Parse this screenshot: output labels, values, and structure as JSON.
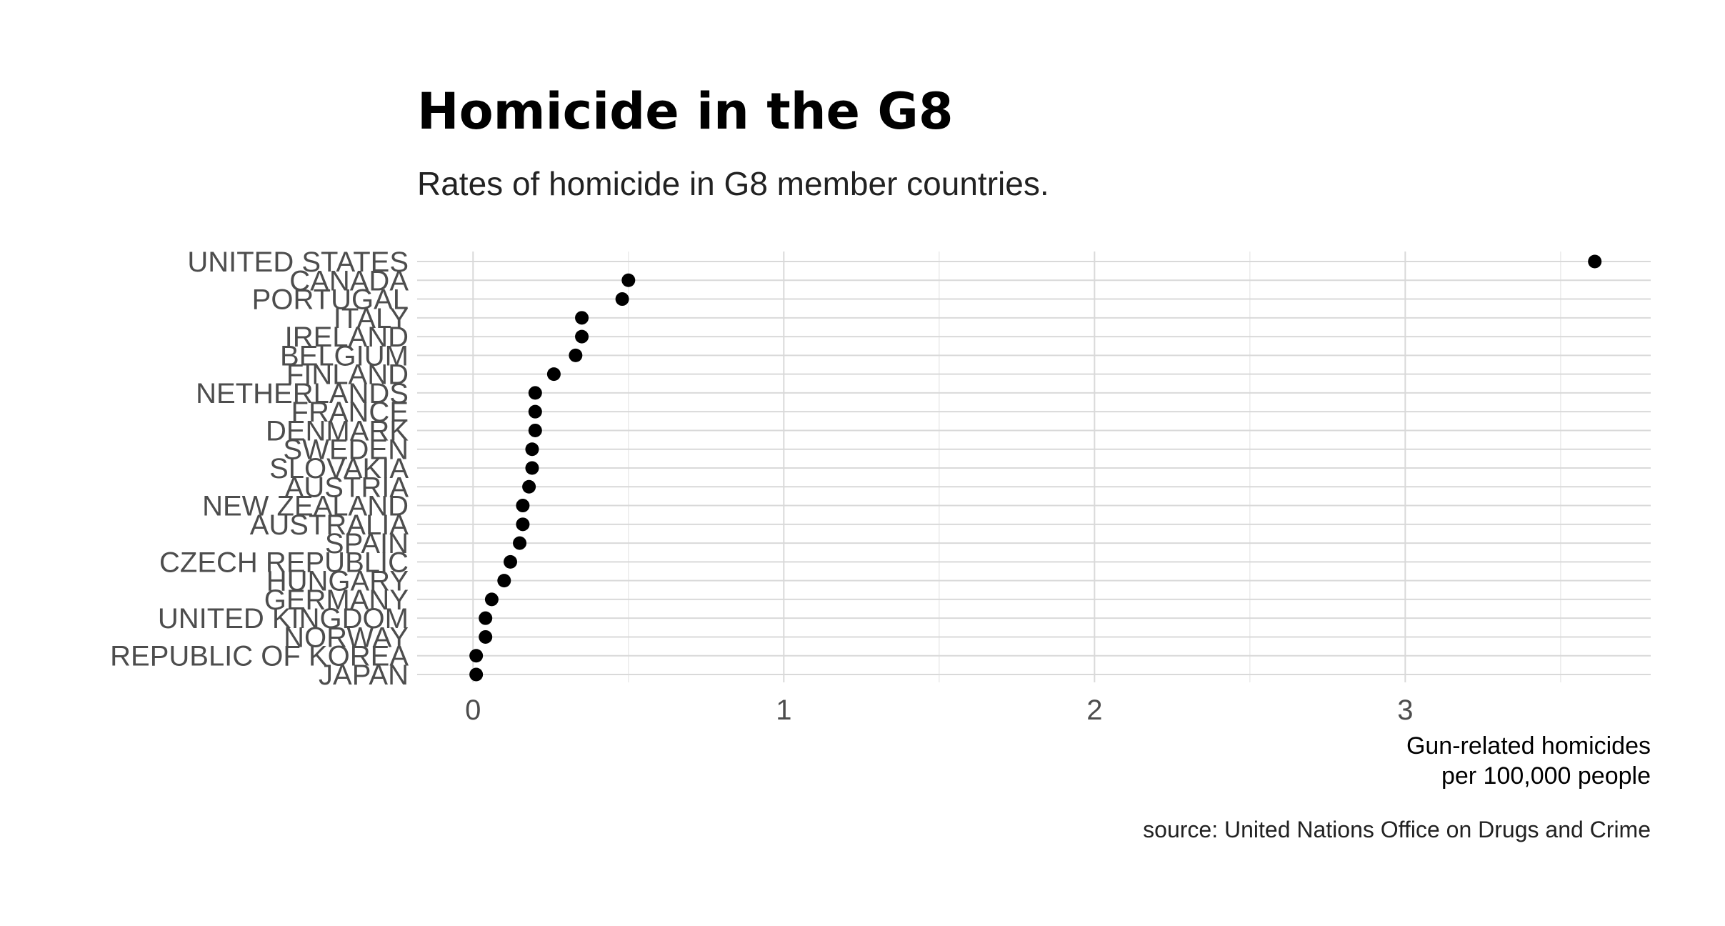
{
  "chart_data": {
    "type": "scatter",
    "title": "Homicide in the G8",
    "subtitle": "Rates of homicide in G8 member countries.",
    "xlabel": [
      "Gun-related homicides",
      "per 100,000 people"
    ],
    "caption": "source: United Nations Office on Drugs and Crime",
    "x_ticks": [
      "0",
      "1",
      "2",
      "3"
    ],
    "xlim": [
      -0.18,
      3.79
    ],
    "grid": true,
    "categories": [
      "UNITED STATES",
      "CANADA",
      "PORTUGAL",
      "ITALY",
      "IRELAND",
      "BELGIUM",
      "FINLAND",
      "NETHERLANDS",
      "FRANCE",
      "DENMARK",
      "SWEDEN",
      "SLOVAKIA",
      "AUSTRIA",
      "NEW ZEALAND",
      "AUSTRALIA",
      "SPAIN",
      "CZECH REPUBLIC",
      "HUNGARY",
      "GERMANY",
      "UNITED KINGDOM",
      "NORWAY",
      "REPUBLIC OF KOREA",
      "JAPAN"
    ],
    "values": [
      3.61,
      0.5,
      0.48,
      0.35,
      0.35,
      0.33,
      0.26,
      0.2,
      0.2,
      0.2,
      0.19,
      0.19,
      0.18,
      0.16,
      0.16,
      0.15,
      0.12,
      0.1,
      0.06,
      0.04,
      0.04,
      0.01,
      0.01
    ],
    "colors": {
      "point": "#000000",
      "grid": "#d9d9d9",
      "label": "#4d4d4d"
    }
  }
}
